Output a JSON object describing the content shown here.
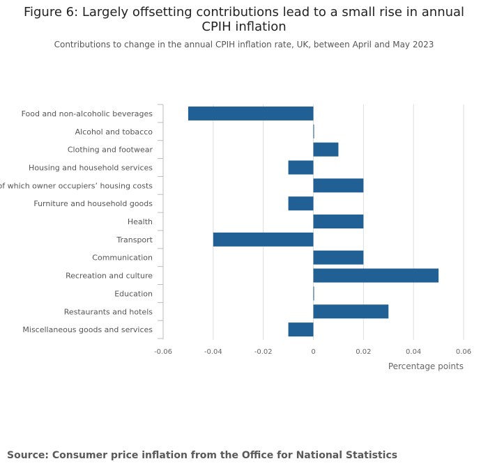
{
  "title": "Figure 6: Largely offsetting contributions lead to a small rise in annual CPIH inflation",
  "subtitle": "Contributions to change in the annual CPIH inflation rate, UK, between April and May 2023",
  "source": "Source: Consumer price inflation from the Office for National Statistics",
  "colors": {
    "bar": "#206095",
    "grid": "#dddddd",
    "axis": "#bbbbbb"
  },
  "chart_data": {
    "type": "bar",
    "orientation": "horizontal",
    "categories": [
      "Food and non-alcoholic beverages",
      "Alcohol and tobacco",
      "Clothing and footwear",
      "Housing and household services",
      "of which owner occupiers’ housing costs",
      "Furniture and household goods",
      "Health",
      "Transport",
      "Communication",
      "Recreation and culture",
      "Education",
      "Restaurants and hotels",
      "Miscellaneous goods and services"
    ],
    "values": [
      -0.05,
      0.0,
      0.01,
      -0.01,
      0.02,
      -0.01,
      0.02,
      -0.04,
      0.02,
      0.05,
      0.0,
      0.03,
      -0.01
    ],
    "xlabel": "Percentage points",
    "xlim": [
      -0.06,
      0.06
    ],
    "xticks": [
      -0.06,
      -0.04,
      -0.02,
      0,
      0.02,
      0.04,
      0.06
    ],
    "xtick_labels": [
      "-0.06",
      "-0.04",
      "-0.02",
      "0",
      "0.02",
      "0.04",
      "0.06"
    ],
    "grid": true
  }
}
